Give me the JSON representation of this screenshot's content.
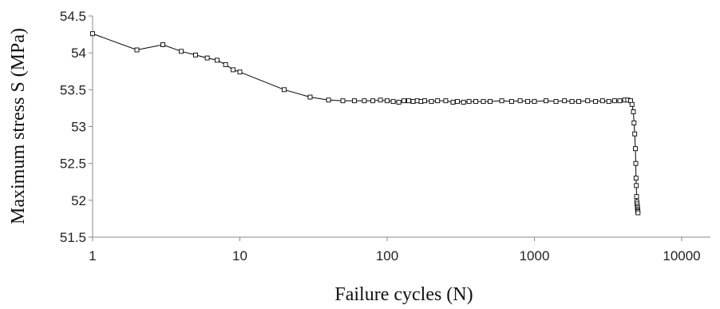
{
  "chart_data": {
    "type": "scatter",
    "title": "",
    "xlabel": "Failure cycles (N)",
    "ylabel": "Maximum stress S (MPa)",
    "xscale": "log",
    "xlim": [
      1,
      20000
    ],
    "ylim": [
      51.5,
      54.5
    ],
    "x_ticks": [
      "1",
      "10",
      "100",
      "1000",
      "10000"
    ],
    "y_ticks": [
      "51.5",
      "52",
      "52.5",
      "53",
      "53.5",
      "54",
      "54.5"
    ],
    "grid": false,
    "legend": "none",
    "marker": "hollow-square",
    "line_color": "#000000",
    "series": [
      {
        "x": [
          1,
          2,
          3,
          4,
          5,
          6,
          7,
          8,
          9,
          10,
          20,
          30,
          40,
          50,
          60,
          70,
          80,
          90,
          100,
          110,
          120,
          130,
          140,
          150,
          160,
          170,
          180,
          200,
          220,
          250,
          280,
          300,
          330,
          360,
          400,
          450,
          500,
          600,
          700,
          800,
          900,
          1000,
          1200,
          1400,
          1600,
          1800,
          2000,
          2300,
          2600,
          2900,
          3200,
          3500,
          3800,
          4100,
          4300,
          4500,
          4600,
          4700,
          4750,
          4800,
          4850,
          4880,
          4900,
          4920,
          4940,
          4960,
          4980,
          5000,
          5010,
          5020,
          5030,
          5040,
          5050
        ],
        "y": [
          54.26,
          54.04,
          54.11,
          54.02,
          53.97,
          53.93,
          53.9,
          53.84,
          53.77,
          53.74,
          53.5,
          53.4,
          53.36,
          53.35,
          53.35,
          53.35,
          53.35,
          53.36,
          53.35,
          53.34,
          53.33,
          53.35,
          53.35,
          53.34,
          53.35,
          53.34,
          53.35,
          53.34,
          53.35,
          53.35,
          53.33,
          53.34,
          53.33,
          53.34,
          53.34,
          53.34,
          53.34,
          53.35,
          53.34,
          53.35,
          53.34,
          53.34,
          53.35,
          53.34,
          53.35,
          53.34,
          53.34,
          53.35,
          53.34,
          53.35,
          53.34,
          53.35,
          53.35,
          53.36,
          53.36,
          53.35,
          53.3,
          53.2,
          53.05,
          52.9,
          52.7,
          52.5,
          52.3,
          52.2,
          52.05,
          51.98,
          51.95,
          51.92,
          51.9,
          51.88,
          51.86,
          51.85,
          51.83
        ]
      }
    ]
  }
}
